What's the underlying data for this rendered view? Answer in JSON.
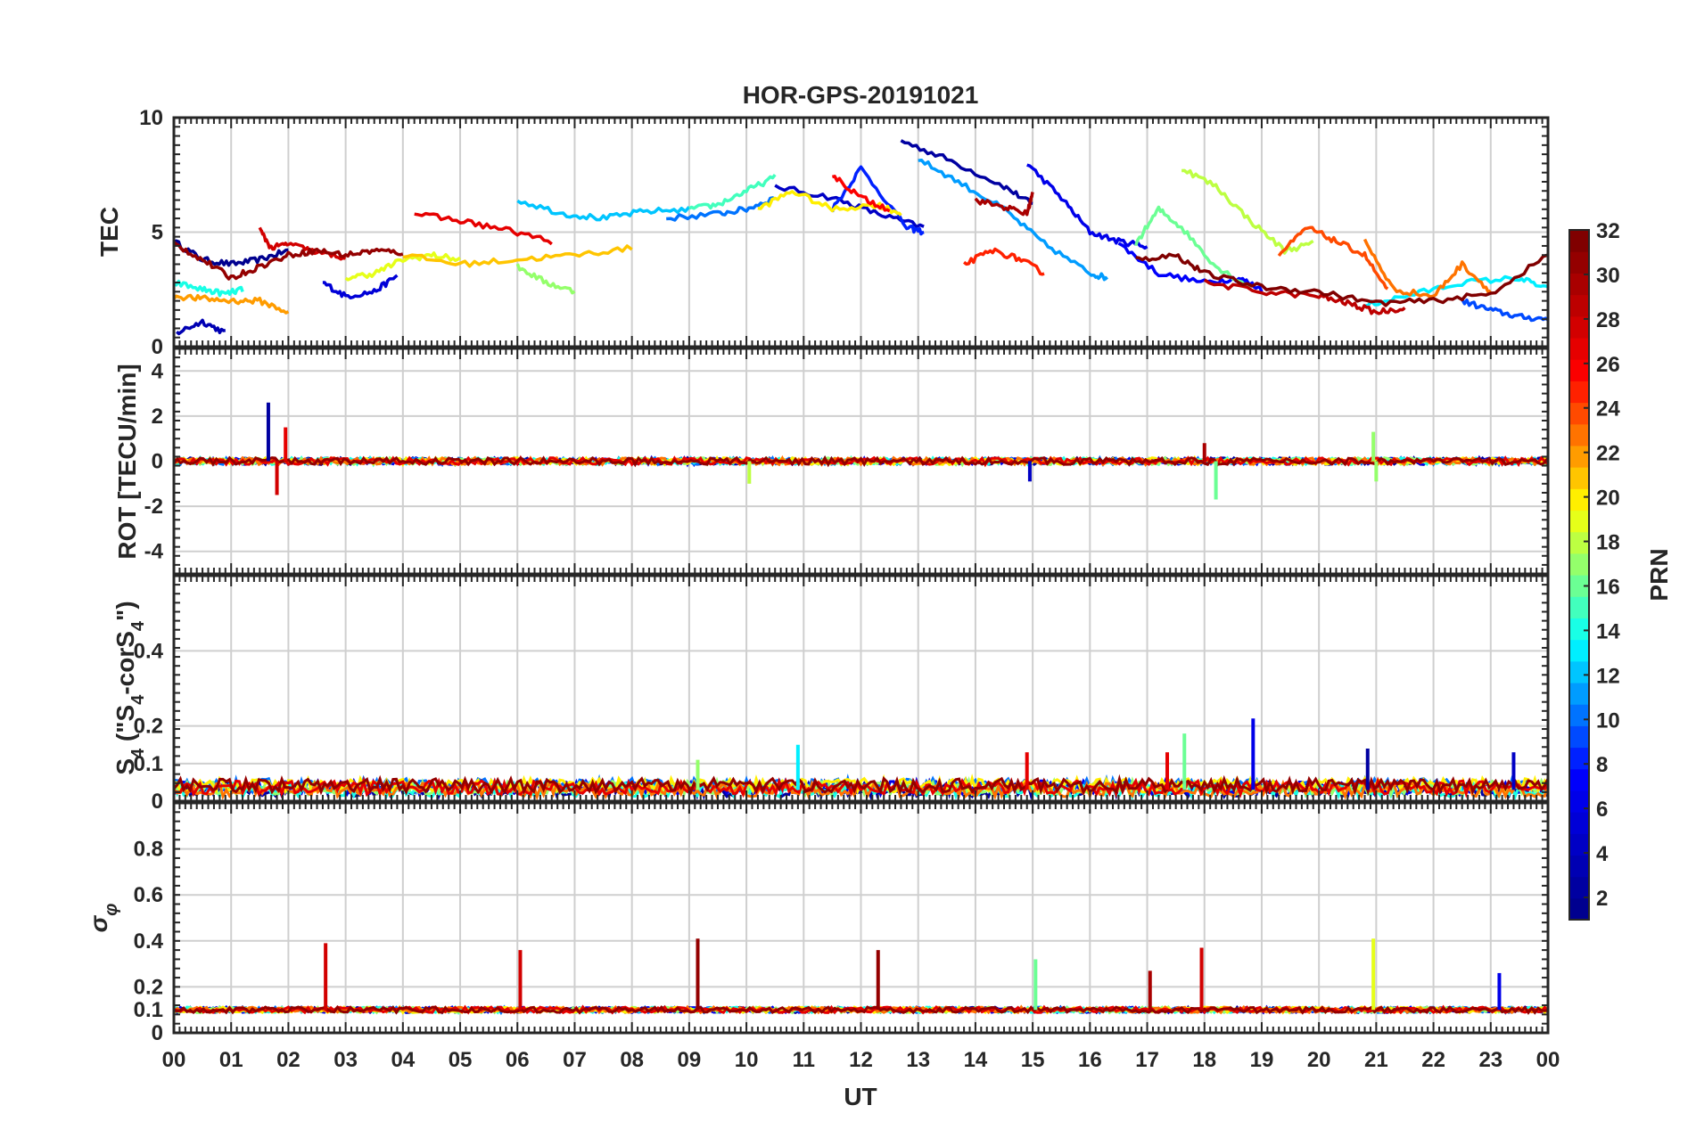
{
  "colors": {
    "jet_stops": [
      "#00008f",
      "#0000ff",
      "#00ffff",
      "#ffff00",
      "#ff0000",
      "#800000"
    ],
    "axes": "#262626",
    "grid": "#cfcfcf"
  },
  "chart_data": {
    "type": "line",
    "title": "HOR-GPS-20191021",
    "xlabel": "UT",
    "xlim": [
      0,
      24
    ],
    "x_tick_labels": [
      "00",
      "01",
      "02",
      "03",
      "04",
      "05",
      "06",
      "07",
      "08",
      "09",
      "10",
      "11",
      "12",
      "13",
      "14",
      "15",
      "16",
      "17",
      "18",
      "19",
      "20",
      "21",
      "22",
      "23",
      "00"
    ],
    "grid": true,
    "colorbar": {
      "label": "PRN",
      "range": [
        1,
        32
      ],
      "ticks": [
        2,
        4,
        6,
        8,
        10,
        12,
        14,
        16,
        18,
        20,
        22,
        24,
        26,
        28,
        30,
        32
      ],
      "colormap": "jet",
      "placement": "right"
    },
    "panels": [
      {
        "id": "tec",
        "ylabel": "TEC",
        "ylim": [
          0,
          10
        ],
        "yticks": [
          0,
          5,
          10
        ],
        "series": [
          {
            "prn": 1,
            "x": [
              0.0,
              0.5,
              1.0,
              1.5,
              2.0
            ],
            "y": [
              4.6,
              3.8,
              3.6,
              3.8,
              4.2
            ]
          },
          {
            "prn": 2,
            "x": [
              12.7,
              13.5,
              14.5,
              15.0
            ],
            "y": [
              9.0,
              8.2,
              7.0,
              6.2
            ]
          },
          {
            "prn": 3,
            "x": [
              0.05,
              0.5,
              0.9
            ],
            "y": [
              0.6,
              1.1,
              0.6
            ]
          },
          {
            "prn": 4,
            "x": [
              10.5,
              11.5,
              12.3,
              13.1
            ],
            "y": [
              7.0,
              6.5,
              5.8,
              5.2
            ]
          },
          {
            "prn": 5,
            "x": [
              2.6,
              3.0,
              3.5,
              3.9
            ],
            "y": [
              2.8,
              2.2,
              2.4,
              3.1
            ]
          },
          {
            "prn": 6,
            "x": [
              14.9,
              15.5,
              16.0,
              16.5,
              17.0
            ],
            "y": [
              8.0,
              6.5,
              5.0,
              4.6,
              4.4
            ]
          },
          {
            "prn": 7,
            "x": [
              16.5,
              17.2,
              18.0,
              18.6,
              19.0
            ],
            "y": [
              4.5,
              3.2,
              2.8,
              3.0,
              2.5
            ]
          },
          {
            "prn": 8,
            "x": [
              11.5,
              12.0,
              12.8,
              13.1
            ],
            "y": [
              6.0,
              7.8,
              5.2,
              5.0
            ]
          },
          {
            "prn": 9,
            "x": [
              22.5,
              23.0,
              23.5,
              24.0
            ],
            "y": [
              2.0,
              1.6,
              1.3,
              1.2
            ]
          },
          {
            "prn": 10,
            "x": [
              8.6,
              9.5,
              10.0,
              10.5
            ],
            "y": [
              5.6,
              5.8,
              6.0,
              6.5
            ]
          },
          {
            "prn": 11,
            "x": [
              13.0,
              13.7,
              14.5,
              15.2,
              16.0,
              16.3
            ],
            "y": [
              8.2,
              7.2,
              6.0,
              4.5,
              3.2,
              3.0
            ]
          },
          {
            "prn": 12,
            "x": [
              6.0,
              6.8,
              7.5,
              8.2,
              9.0
            ],
            "y": [
              6.4,
              5.8,
              5.6,
              5.9,
              6.0
            ]
          },
          {
            "prn": 13,
            "x": [
              20.8,
              21.5,
              22.5,
              23.5,
              24.0
            ],
            "y": [
              1.8,
              2.2,
              2.8,
              3.0,
              2.5
            ]
          },
          {
            "prn": 14,
            "x": [
              0.0,
              0.5,
              0.9,
              1.2
            ],
            "y": [
              2.8,
              2.5,
              2.3,
              2.5
            ]
          },
          {
            "prn": 15,
            "x": [
              9.0,
              9.5,
              10.0,
              10.5
            ],
            "y": [
              6.0,
              6.2,
              6.8,
              7.4
            ]
          },
          {
            "prn": 16,
            "x": [
              16.8,
              17.2,
              17.6,
              18.2,
              18.8
            ],
            "y": [
              4.5,
              6.0,
              5.2,
              3.5,
              2.6
            ]
          },
          {
            "prn": 17,
            "x": [
              6.0,
              6.5,
              7.0
            ],
            "y": [
              3.5,
              2.8,
              2.4
            ]
          },
          {
            "prn": 18,
            "x": [
              17.6,
              18.2,
              18.8,
              19.4,
              19.9
            ],
            "y": [
              7.8,
              7.0,
              5.5,
              4.2,
              4.5
            ]
          },
          {
            "prn": 19,
            "x": [
              3.0,
              3.5,
              4.0,
              4.5,
              5.0
            ],
            "y": [
              3.0,
              3.2,
              3.8,
              4.0,
              3.8
            ]
          },
          {
            "prn": 20,
            "x": [
              10.2,
              10.8,
              11.5,
              12.3,
              12.7
            ],
            "y": [
              6.0,
              6.8,
              6.0,
              6.2,
              5.8
            ]
          },
          {
            "prn": 21,
            "x": [
              4.0,
              5.0,
              6.0,
              7.0,
              8.0
            ],
            "y": [
              4.0,
              3.6,
              3.8,
              4.0,
              4.3
            ]
          },
          {
            "prn": 22,
            "x": [
              0.0,
              0.5,
              1.0,
              1.5,
              2.0
            ],
            "y": [
              2.2,
              2.1,
              2.0,
              2.0,
              1.5
            ]
          },
          {
            "prn": 23,
            "x": [
              20.8,
              21.3,
              22.0,
              22.5,
              23.0
            ],
            "y": [
              4.6,
              2.5,
              2.2,
              3.6,
              2.4
            ]
          },
          {
            "prn": 24,
            "x": [
              19.3,
              19.8,
              20.3,
              20.8,
              21.2
            ],
            "y": [
              4.0,
              5.2,
              4.6,
              4.0,
              2.4
            ]
          },
          {
            "prn": 25,
            "x": [
              13.8,
              14.3,
              14.8,
              15.2
            ],
            "y": [
              3.6,
              4.2,
              3.8,
              3.2
            ]
          },
          {
            "prn": 26,
            "x": [
              11.5,
              12.0,
              12.5
            ],
            "y": [
              7.5,
              6.5,
              6.0
            ]
          },
          {
            "prn": 27,
            "x": [
              4.2,
              5.0,
              5.8,
              6.6
            ],
            "y": [
              5.8,
              5.5,
              5.1,
              4.6
            ]
          },
          {
            "prn": 28,
            "x": [
              1.5,
              1.7,
              2.0,
              2.5,
              3.0
            ],
            "y": [
              5.1,
              4.3,
              4.5,
              4.1,
              3.9
            ]
          },
          {
            "prn": 29,
            "x": [
              18.0,
              19.0,
              20.0,
              20.5,
              21.0,
              21.5
            ],
            "y": [
              2.8,
              2.4,
              2.2,
              1.9,
              1.5,
              1.7
            ]
          },
          {
            "prn": 30,
            "x": [
              14.0,
              14.5,
              14.9,
              15.0
            ],
            "y": [
              6.4,
              6.1,
              5.8,
              6.7
            ]
          },
          {
            "prn": 31,
            "x": [
              0.0,
              0.5,
              1.0,
              1.5,
              2.0,
              2.5,
              3.0,
              3.5,
              4.0
            ],
            "y": [
              4.5,
              3.8,
              3.0,
              3.5,
              4.0,
              4.2,
              4.0,
              4.2,
              4.1
            ]
          },
          {
            "prn": 32,
            "x": [
              16.8,
              17.5,
              18.0,
              19.0,
              20.0,
              21.0,
              22.0,
              23.0,
              24.0
            ],
            "y": [
              3.8,
              4.0,
              3.2,
              2.6,
              2.4,
              1.9,
              2.0,
              2.3,
              4.0
            ]
          }
        ]
      },
      {
        "id": "rot",
        "ylabel": "ROT [TECU/min]",
        "ylim": [
          -5,
          5
        ],
        "yticks": [
          -4,
          -2,
          0,
          2,
          4
        ],
        "baseline": 0,
        "spikes": [
          {
            "x": 1.65,
            "y": 2.6,
            "prn": 2
          },
          {
            "x": 1.8,
            "y": -1.5,
            "prn": 28
          },
          {
            "x": 1.95,
            "y": 1.5,
            "prn": 27
          },
          {
            "x": 10.05,
            "y": -1.0,
            "prn": 18
          },
          {
            "x": 14.95,
            "y": -0.9,
            "prn": 4
          },
          {
            "x": 18.2,
            "y": -1.7,
            "prn": 16
          },
          {
            "x": 18.0,
            "y": 0.8,
            "prn": 30
          },
          {
            "x": 20.95,
            "y": 1.3,
            "prn": 17
          },
          {
            "x": 21.0,
            "y": -0.9,
            "prn": 17
          }
        ]
      },
      {
        "id": "s4",
        "ylabel": "S4 (\"S4-corS4\")",
        "ylim": [
          0,
          0.6
        ],
        "yticks": [
          0,
          0.1,
          0.2,
          0.4
        ],
        "baseline": 0.03,
        "spikes": [
          {
            "x": 9.15,
            "y": 0.11,
            "prn": 17
          },
          {
            "x": 10.9,
            "y": 0.15,
            "prn": 13
          },
          {
            "x": 14.9,
            "y": 0.13,
            "prn": 27
          },
          {
            "x": 17.35,
            "y": 0.13,
            "prn": 27
          },
          {
            "x": 17.65,
            "y": 0.18,
            "prn": 16
          },
          {
            "x": 18.85,
            "y": 0.22,
            "prn": 6
          },
          {
            "x": 20.85,
            "y": 0.14,
            "prn": 2
          },
          {
            "x": 23.4,
            "y": 0.13,
            "prn": 4
          }
        ]
      },
      {
        "id": "sigma",
        "ylabel": "σφ",
        "ylim": [
          0,
          1
        ],
        "yticks": [
          0,
          0.1,
          0.2,
          0.4,
          0.6,
          0.8
        ],
        "baseline": 0.1,
        "spikes": [
          {
            "x": 2.65,
            "y": 0.39,
            "prn": 28
          },
          {
            "x": 6.05,
            "y": 0.36,
            "prn": 28
          },
          {
            "x": 9.15,
            "y": 0.41,
            "prn": 31
          },
          {
            "x": 12.3,
            "y": 0.36,
            "prn": 31
          },
          {
            "x": 15.05,
            "y": 0.32,
            "prn": 16
          },
          {
            "x": 17.05,
            "y": 0.27,
            "prn": 30
          },
          {
            "x": 17.95,
            "y": 0.37,
            "prn": 28
          },
          {
            "x": 20.95,
            "y": 0.41,
            "prn": 19
          },
          {
            "x": 23.15,
            "y": 0.26,
            "prn": 6
          }
        ]
      }
    ]
  }
}
